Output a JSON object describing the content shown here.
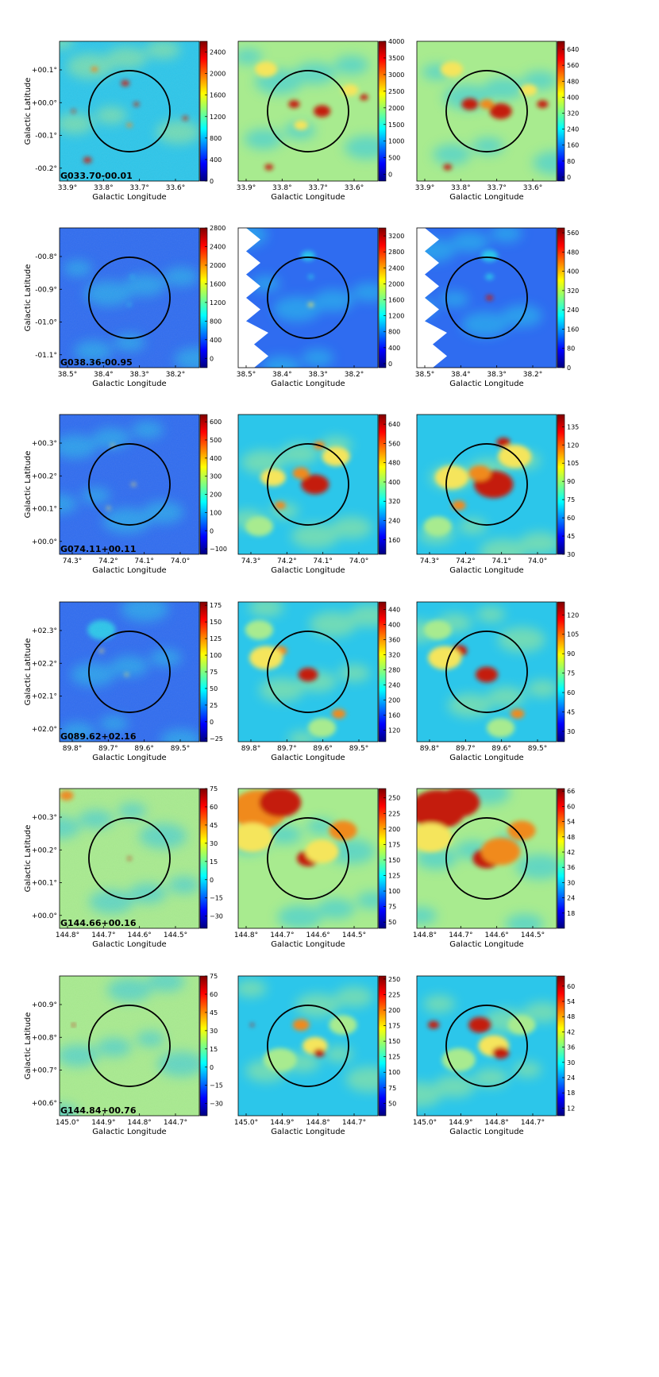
{
  "figure": {
    "x_axis_label": "Galactic Longitude",
    "y_axis_label": "Galactic Latitude",
    "colors": {
      "bg_blue": "#2f6cf0",
      "bg_cyan": "#2cc6ea",
      "bg_green": "#a8eb8f",
      "bg_yellow": "#f5e55c",
      "hot_orange": "#f08a1a",
      "hot_red": "#c41a0a",
      "circle": "#000000"
    },
    "colormap": [
      "#00007f",
      "#0000ff",
      "#0080ff",
      "#00ffff",
      "#80ff80",
      "#ffff00",
      "#ff8000",
      "#ff0000",
      "#7f0000"
    ],
    "rows": [
      {
        "source_label": "G033.70-00.01",
        "x_ticks": [
          "33.9°",
          "33.8°",
          "33.7°",
          "33.6°"
        ],
        "y_ticks": [
          "+00.1°",
          "+00.0°",
          "-00.1°",
          "-00.2°"
        ],
        "panels": [
          {
            "bg": "bg_cyan",
            "scale": [
              0,
              2600
            ],
            "colorbar_ticks": [
              "2400",
              "2000",
              "1600",
              "1200",
              "800",
              "400",
              "0"
            ],
            "colorbar_values": [
              2400,
              2000,
              1600,
              1200,
              800,
              400,
              0
            ]
          },
          {
            "bg": "bg_green",
            "scale": [
              -200,
              4000
            ],
            "colorbar_ticks": [
              "4000",
              "3500",
              "3000",
              "2500",
              "2000",
              "1500",
              "1000",
              "500",
              "0"
            ],
            "colorbar_values": [
              4000,
              3500,
              3000,
              2500,
              2000,
              1500,
              1000,
              500,
              0
            ]
          },
          {
            "bg": "bg_green",
            "scale": [
              -20,
              680
            ],
            "colorbar_ticks": [
              "640",
              "560",
              "480",
              "400",
              "320",
              "240",
              "160",
              "80",
              "0"
            ],
            "colorbar_values": [
              640,
              560,
              480,
              400,
              320,
              240,
              160,
              80,
              0
            ]
          }
        ]
      },
      {
        "source_label": "G038.36-00.95",
        "x_ticks": [
          "38.5°",
          "38.4°",
          "38.3°",
          "38.2°"
        ],
        "y_ticks": [
          "-00.8°",
          "-00.9°",
          "-01.0°",
          "-01.1°"
        ],
        "panels": [
          {
            "bg": "bg_blue",
            "scale": [
              -200,
              2800
            ],
            "colorbar_ticks": [
              "2800",
              "2400",
              "2000",
              "1600",
              "1200",
              "800",
              "400",
              "0"
            ],
            "colorbar_values": [
              2800,
              2400,
              2000,
              1600,
              1200,
              800,
              400,
              0
            ]
          },
          {
            "bg": "bg_blue",
            "scale": [
              -100,
              3400
            ],
            "colorbar_ticks": [
              "3200",
              "2800",
              "2400",
              "2000",
              "1600",
              "1200",
              "800",
              "400",
              "0"
            ],
            "colorbar_values": [
              3200,
              2800,
              2400,
              2000,
              1600,
              1200,
              800,
              400,
              0
            ]
          },
          {
            "bg": "bg_blue",
            "scale": [
              0,
              580
            ],
            "colorbar_ticks": [
              "560",
              "480",
              "400",
              "320",
              "240",
              "160",
              "80",
              "0"
            ],
            "colorbar_values": [
              560,
              480,
              400,
              320,
              240,
              160,
              80,
              0
            ]
          }
        ]
      },
      {
        "source_label": "G074.11+00.11",
        "x_ticks": [
          "74.3°",
          "74.2°",
          "74.1°",
          "74.0°"
        ],
        "y_ticks": [
          "+00.3°",
          "+00.2°",
          "+00.1°",
          "+00.0°"
        ],
        "panels": [
          {
            "bg": "bg_blue",
            "scale": [
              -130,
              640
            ],
            "colorbar_ticks": [
              "600",
              "500",
              "400",
              "300",
              "200",
              "100",
              "0",
              "−100"
            ],
            "colorbar_values": [
              600,
              500,
              400,
              300,
              200,
              100,
              0,
              -100
            ]
          },
          {
            "bg": "bg_cyan",
            "scale": [
              100,
              680
            ],
            "colorbar_ticks": [
              "640",
              "560",
              "480",
              "400",
              "320",
              "240",
              "160"
            ],
            "colorbar_values": [
              640,
              560,
              480,
              400,
              320,
              240,
              160
            ]
          },
          {
            "bg": "bg_cyan",
            "scale": [
              30,
              145
            ],
            "colorbar_ticks": [
              "135",
              "120",
              "105",
              "90",
              "75",
              "60",
              "45",
              "30"
            ],
            "colorbar_values": [
              135,
              120,
              105,
              90,
              75,
              60,
              45,
              30
            ]
          }
        ]
      },
      {
        "source_label": "G089.62+02.16",
        "x_ticks": [
          "89.8°",
          "89.7°",
          "89.6°",
          "89.5°"
        ],
        "y_ticks": [
          "+02.3°",
          "+02.2°",
          "+02.1°",
          "+02.0°"
        ],
        "panels": [
          {
            "bg": "bg_blue",
            "scale": [
              -30,
              180
            ],
            "colorbar_ticks": [
              "175",
              "150",
              "125",
              "100",
              "75",
              "50",
              "25",
              "0",
              "−25"
            ],
            "colorbar_values": [
              175,
              150,
              125,
              100,
              75,
              50,
              25,
              0,
              -25
            ]
          },
          {
            "bg": "bg_cyan",
            "scale": [
              90,
              460
            ],
            "colorbar_ticks": [
              "440",
              "400",
              "360",
              "320",
              "280",
              "240",
              "200",
              "160",
              "120"
            ],
            "colorbar_values": [
              440,
              400,
              360,
              320,
              280,
              240,
              200,
              160,
              120
            ]
          },
          {
            "bg": "bg_cyan",
            "scale": [
              22,
              130
            ],
            "colorbar_ticks": [
              "120",
              "105",
              "90",
              "75",
              "60",
              "45",
              "30"
            ],
            "colorbar_values": [
              120,
              105,
              90,
              75,
              60,
              45,
              30
            ]
          }
        ]
      },
      {
        "source_label": "G144.66+00.16",
        "x_ticks": [
          "144.8°",
          "144.7°",
          "144.6°",
          "144.5°"
        ],
        "y_ticks": [
          "+00.3°",
          "+00.2°",
          "+00.1°",
          "+00.0°"
        ],
        "panels": [
          {
            "bg": "bg_green",
            "scale": [
              -40,
              75
            ],
            "colorbar_ticks": [
              "75",
              "60",
              "45",
              "30",
              "15",
              "0",
              "−15",
              "−30"
            ],
            "colorbar_values": [
              75,
              60,
              45,
              30,
              15,
              0,
              -15,
              -30
            ]
          },
          {
            "bg": "bg_green",
            "scale": [
              40,
              265
            ],
            "colorbar_ticks": [
              "250",
              "225",
              "200",
              "175",
              "150",
              "125",
              "100",
              "75",
              "50"
            ],
            "colorbar_values": [
              250,
              225,
              200,
              175,
              150,
              125,
              100,
              75,
              50
            ]
          },
          {
            "bg": "bg_green",
            "scale": [
              12,
              67
            ],
            "colorbar_ticks": [
              "66",
              "60",
              "54",
              "48",
              "42",
              "36",
              "30",
              "24",
              "18"
            ],
            "colorbar_values": [
              66,
              60,
              54,
              48,
              42,
              36,
              30,
              24,
              18
            ]
          }
        ]
      },
      {
        "source_label": "G144.84+00.76",
        "x_ticks": [
          "145.0°",
          "144.9°",
          "144.8°",
          "144.7°"
        ],
        "y_ticks": [
          "+00.9°",
          "+00.8°",
          "+00.7°",
          "+00.6°"
        ],
        "panels": [
          {
            "bg": "bg_green",
            "scale": [
              -40,
              75
            ],
            "colorbar_ticks": [
              "75",
              "60",
              "45",
              "30",
              "15",
              "0",
              "−15",
              "−30"
            ],
            "colorbar_values": [
              75,
              60,
              45,
              30,
              15,
              0,
              -15,
              -30
            ]
          },
          {
            "bg": "bg_cyan",
            "scale": [
              30,
              255
            ],
            "colorbar_ticks": [
              "250",
              "225",
              "200",
              "175",
              "150",
              "125",
              "100",
              "75",
              "50"
            ],
            "colorbar_values": [
              250,
              225,
              200,
              175,
              150,
              125,
              100,
              75,
              50
            ]
          },
          {
            "bg": "bg_cyan",
            "scale": [
              9,
              64
            ],
            "colorbar_ticks": [
              "60",
              "54",
              "48",
              "42",
              "36",
              "30",
              "24",
              "18",
              "12"
            ],
            "colorbar_values": [
              60,
              54,
              48,
              42,
              36,
              30,
              24,
              18,
              12
            ]
          }
        ]
      }
    ]
  }
}
